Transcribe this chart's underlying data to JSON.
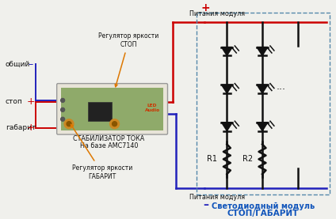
{
  "bg_color": "#f0f0ec",
  "wire_red": "#cc0000",
  "wire_blue": "#2222bb",
  "wire_dark": "#111111",
  "dash_color": "#5588aa",
  "text_color": "#111111",
  "cyan_text": "#1155bb",
  "orange_arrow": "#dd7700",
  "label_общий": "общий",
  "label_стоп": "стоп",
  "label_габарит": "габарит",
  "label_reg_stop": "Регулятор яркости\nСТОП",
  "label_reg_gabarit": "Регулятор яркости\nГАБАРИТ",
  "label_stab1": "СТАБИЛИЗАТОР ТОКА",
  "label_stab2": "На базе АМС7140",
  "label_питания_plus": "Питания модуля",
  "label_питания_minus": "Питания модуля",
  "label_R1": "R1",
  "label_R2": "R2",
  "label_dots": "...",
  "label_module1": "Светодиодный модуль",
  "label_module2": "СТОП/ГАБАРИТ",
  "figsize": [
    4.24,
    2.77
  ],
  "dpi": 100
}
